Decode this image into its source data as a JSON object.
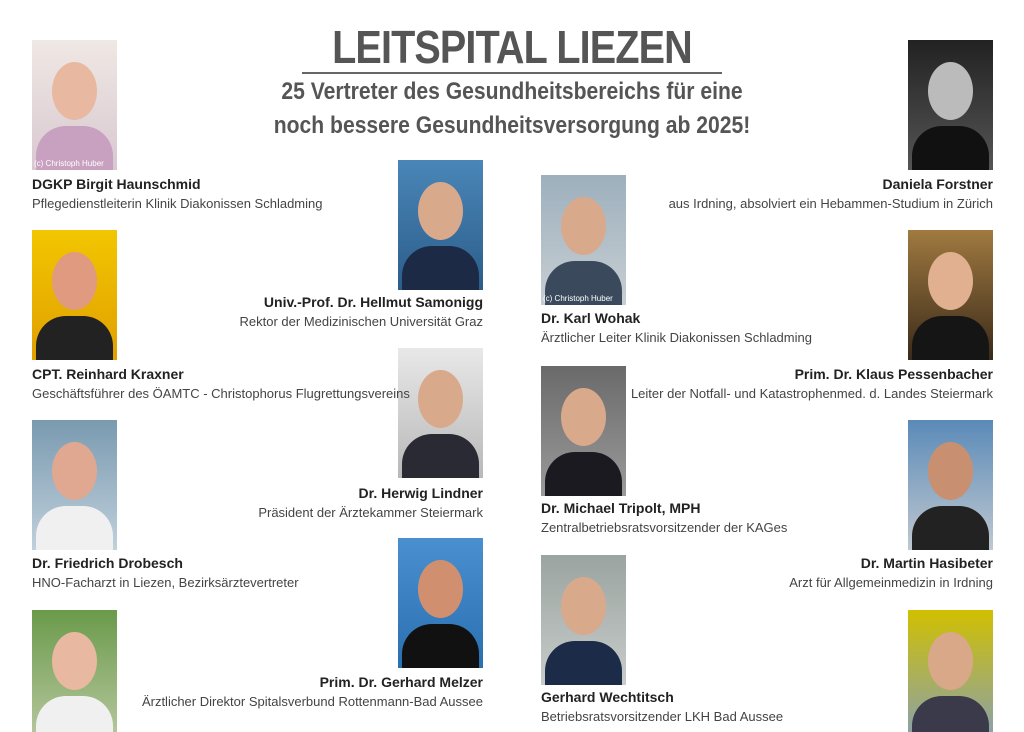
{
  "header": {
    "title": "LEITSPITAL LIEZEN",
    "subtitle_lines": [
      "25 Vertreter des Gesundheitsbereichs für eine",
      "noch bessere Gesundheitsversorgung ab 2025!"
    ]
  },
  "people": [
    {
      "name": "DGKP Birgit Haunschmid",
      "role": "Pflegedienstleiterin Klinik Diakonissen Schladming",
      "credit": "(c) Christoph Huber"
    },
    {
      "name": "Univ.-Prof. Dr. Hellmut Samonigg",
      "role": "Rektor der Medizinischen Universität Graz"
    },
    {
      "name": "Dr. Karl Wohak",
      "role": "Ärztlicher Leiter Klinik Diakonissen Schladming",
      "credit": "(c) Christoph Huber"
    },
    {
      "name": "Daniela Forstner",
      "role": "aus Irdning, absolviert ein Hebammen-Studium in Zürich"
    },
    {
      "name": "CPT. Reinhard Kraxner",
      "role": "Geschäftsführer des ÖAMTC - Christophorus Flugrettungsvereins"
    },
    {
      "name": "Prim. Dr. Klaus Pessenbacher",
      "role": "Leiter der Notfall- und Katastrophenmed. d. Landes Steiermark"
    },
    {
      "name": "Dr. Herwig Lindner",
      "role": "Präsident der Ärztekammer Steiermark"
    },
    {
      "name": "Dr. Michael Tripolt, MPH",
      "role": "Zentralbetriebsratsvorsitzender der KAGes"
    },
    {
      "name": "Dr. Friedrich Drobesch",
      "role": "HNO-Facharzt in Liezen, Bezirksärztevertreter"
    },
    {
      "name": "Dr. Martin Hasibeter",
      "role": "Arzt für Allgemeinmedizin in Irdning"
    },
    {
      "name": "Prim. Dr. Gerhard Melzer",
      "role": "Ärztlicher Direktor Spitalsverbund Rottenmann-Bad Aussee"
    },
    {
      "name": "Gerhard Wechtitsch",
      "role": "Betriebsratsvorsitzender LKH Bad Aussee"
    }
  ]
}
